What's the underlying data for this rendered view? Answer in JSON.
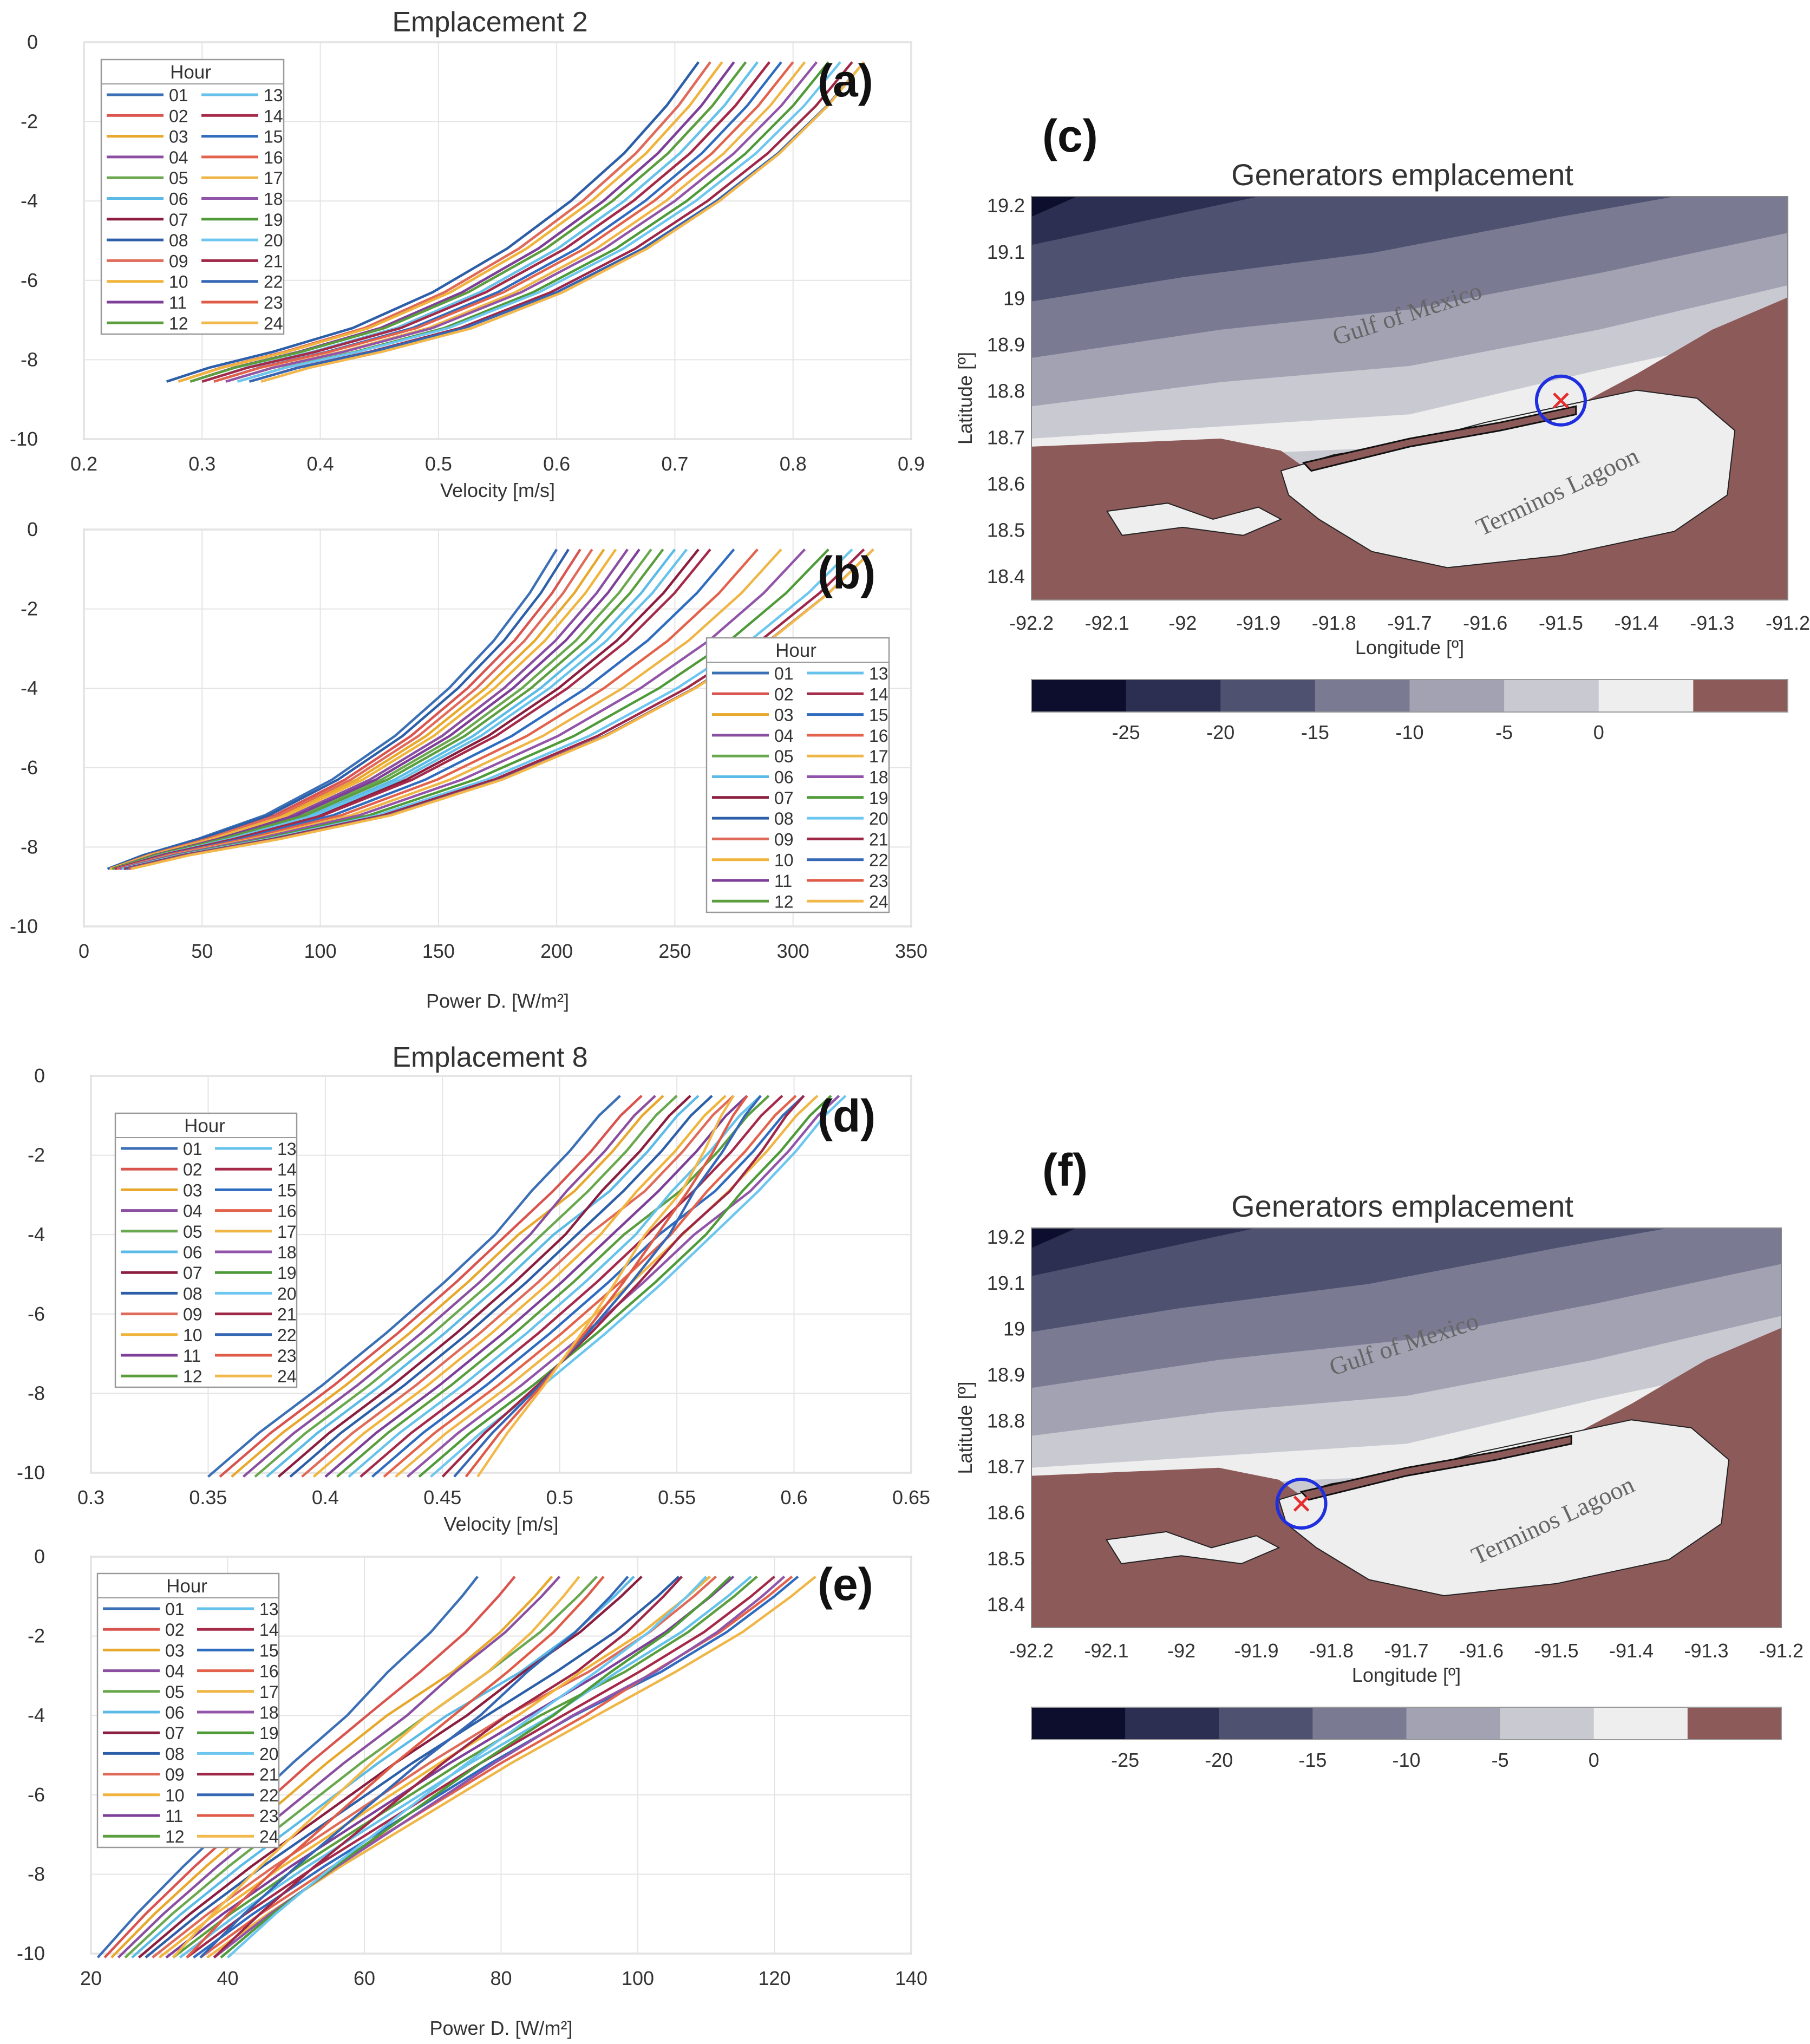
{
  "chart_data": [
    {
      "id": "a",
      "panel_letter": "(a)",
      "type": "line",
      "title": "Emplacement 2",
      "xlabel": "Velocity [m/s]",
      "ylabel": "",
      "xlim": [
        0.2,
        0.9
      ],
      "ylim": [
        -10,
        0
      ],
      "xticks": [
        "0.2",
        "0.3",
        "0.4",
        "0.5",
        "0.6",
        "0.7",
        "0.8",
        "0.9"
      ],
      "yticks": [
        "0",
        "-2",
        "-4",
        "-6",
        "-8",
        "-10"
      ],
      "grid": true,
      "legend": {
        "title": "Hour",
        "placement": "top-left",
        "entries": [
          "01",
          "02",
          "03",
          "04",
          "05",
          "06",
          "07",
          "08",
          "09",
          "10",
          "11",
          "12",
          "13",
          "14",
          "15",
          "16",
          "17",
          "18",
          "19",
          "20",
          "21",
          "22",
          "23",
          "24"
        ]
      },
      "depths": [
        -8.55,
        -8.2,
        -7.8,
        -7.2,
        -6.3,
        -5.2,
        -4.0,
        -2.8,
        -1.6,
        -0.5
      ],
      "series_profile": [
        0,
        0.08,
        0.2,
        0.35,
        0.5,
        0.64,
        0.76,
        0.86,
        0.94,
        1
      ],
      "series": [
        {
          "name": "01",
          "bottom": 0.27,
          "top": 0.72
        },
        {
          "name": "02",
          "bottom": 0.28,
          "top": 0.73
        },
        {
          "name": "03",
          "bottom": 0.28,
          "top": 0.74
        },
        {
          "name": "04",
          "bottom": 0.29,
          "top": 0.75
        },
        {
          "name": "05",
          "bottom": 0.29,
          "top": 0.76
        },
        {
          "name": "06",
          "bottom": 0.3,
          "top": 0.77
        },
        {
          "name": "07",
          "bottom": 0.3,
          "top": 0.78
        },
        {
          "name": "08",
          "bottom": 0.27,
          "top": 0.72
        },
        {
          "name": "09",
          "bottom": 0.28,
          "top": 0.73
        },
        {
          "name": "10",
          "bottom": 0.28,
          "top": 0.74
        },
        {
          "name": "11",
          "bottom": 0.29,
          "top": 0.75
        },
        {
          "name": "12",
          "bottom": 0.29,
          "top": 0.76
        },
        {
          "name": "13",
          "bottom": 0.3,
          "top": 0.77
        },
        {
          "name": "14",
          "bottom": 0.3,
          "top": 0.78
        },
        {
          "name": "15",
          "bottom": 0.31,
          "top": 0.79
        },
        {
          "name": "16",
          "bottom": 0.31,
          "top": 0.8
        },
        {
          "name": "17",
          "bottom": 0.32,
          "top": 0.81
        },
        {
          "name": "18",
          "bottom": 0.32,
          "top": 0.82
        },
        {
          "name": "19",
          "bottom": 0.33,
          "top": 0.83
        },
        {
          "name": "20",
          "bottom": 0.33,
          "top": 0.84
        },
        {
          "name": "21",
          "bottom": 0.34,
          "top": 0.85
        },
        {
          "name": "22",
          "bottom": 0.34,
          "top": 0.86
        },
        {
          "name": "23",
          "bottom": 0.35,
          "top": 0.86
        },
        {
          "name": "24",
          "bottom": 0.35,
          "top": 0.86
        }
      ]
    },
    {
      "id": "b",
      "panel_letter": "(b)",
      "type": "line",
      "title": "",
      "xlabel": "Power D.  [W/m²]",
      "ylabel": "",
      "xlim": [
        0,
        350
      ],
      "ylim": [
        -10,
        0
      ],
      "xticks": [
        "0",
        "50",
        "100",
        "150",
        "200",
        "250",
        "300",
        "350"
      ],
      "yticks": [
        "0",
        "-2",
        "-4",
        "-6",
        "-8",
        "-10"
      ],
      "grid": true,
      "legend": {
        "title": "Hour",
        "placement": "right",
        "entries": [
          "01",
          "02",
          "03",
          "04",
          "05",
          "06",
          "07",
          "08",
          "09",
          "10",
          "11",
          "12",
          "13",
          "14",
          "15",
          "16",
          "17",
          "18",
          "19",
          "20",
          "21",
          "22",
          "23",
          "24"
        ]
      },
      "depths": [
        -8.55,
        -8.2,
        -7.8,
        -7.2,
        -6.3,
        -5.2,
        -4.0,
        -2.8,
        -1.6,
        -0.5
      ],
      "series_profile": [
        0,
        0.08,
        0.2,
        0.35,
        0.5,
        0.64,
        0.76,
        0.86,
        0.94,
        1
      ],
      "series": [
        {
          "name": "01",
          "bottom": 10,
          "top": 200
        },
        {
          "name": "02",
          "bottom": 11,
          "top": 210
        },
        {
          "name": "03",
          "bottom": 11,
          "top": 220
        },
        {
          "name": "04",
          "bottom": 12,
          "top": 230
        },
        {
          "name": "05",
          "bottom": 12,
          "top": 240
        },
        {
          "name": "06",
          "bottom": 13,
          "top": 250
        },
        {
          "name": "07",
          "bottom": 13,
          "top": 260
        },
        {
          "name": "08",
          "bottom": 10,
          "top": 205
        },
        {
          "name": "09",
          "bottom": 11,
          "top": 215
        },
        {
          "name": "10",
          "bottom": 11,
          "top": 225
        },
        {
          "name": "11",
          "bottom": 12,
          "top": 235
        },
        {
          "name": "12",
          "bottom": 12,
          "top": 245
        },
        {
          "name": "13",
          "bottom": 13,
          "top": 255
        },
        {
          "name": "14",
          "bottom": 13,
          "top": 265
        },
        {
          "name": "15",
          "bottom": 14,
          "top": 275
        },
        {
          "name": "16",
          "bottom": 14,
          "top": 285
        },
        {
          "name": "17",
          "bottom": 15,
          "top": 295
        },
        {
          "name": "18",
          "bottom": 15,
          "top": 305
        },
        {
          "name": "19",
          "bottom": 16,
          "top": 315
        },
        {
          "name": "20",
          "bottom": 16,
          "top": 325
        },
        {
          "name": "21",
          "bottom": 17,
          "top": 330
        },
        {
          "name": "22",
          "bottom": 18,
          "top": 334
        },
        {
          "name": "23",
          "bottom": 19,
          "top": 334
        },
        {
          "name": "24",
          "bottom": 20,
          "top": 334
        }
      ]
    },
    {
      "id": "d",
      "panel_letter": "(d)",
      "type": "line",
      "title": "Emplacement 8",
      "xlabel": "Velocity [m/s]",
      "ylabel": "",
      "xlim": [
        0.3,
        0.65
      ],
      "ylim": [
        -10,
        0
      ],
      "xticks": [
        "0.3",
        "0.35",
        "0.4",
        "0.45",
        "0.5",
        "0.55",
        "0.6",
        "0.65"
      ],
      "yticks": [
        "0",
        "-2",
        "-4",
        "-6",
        "-8",
        "-10"
      ],
      "grid": true,
      "legend": {
        "title": "Hour",
        "placement": "top-left",
        "entries": [
          "01",
          "02",
          "03",
          "04",
          "05",
          "06",
          "07",
          "08",
          "09",
          "10",
          "11",
          "12",
          "13",
          "14",
          "15",
          "16",
          "17",
          "18",
          "19",
          "20",
          "21",
          "22",
          "23",
          "24"
        ]
      },
      "depths": [
        -10.1,
        -9.0,
        -7.8,
        -6.5,
        -5.2,
        -4.0,
        -2.9,
        -1.9,
        -1.0,
        -0.5
      ],
      "series_profile": [
        0,
        0.12,
        0.27,
        0.42,
        0.56,
        0.68,
        0.79,
        0.88,
        0.95,
        1
      ],
      "series": [
        {
          "name": "01",
          "bottom": 0.35,
          "top": 0.53
        },
        {
          "name": "02",
          "bottom": 0.355,
          "top": 0.535
        },
        {
          "name": "03",
          "bottom": 0.36,
          "top": 0.54
        },
        {
          "name": "04",
          "bottom": 0.365,
          "top": 0.545
        },
        {
          "name": "05",
          "bottom": 0.37,
          "top": 0.55
        },
        {
          "name": "06",
          "bottom": 0.375,
          "top": 0.555
        },
        {
          "name": "07",
          "bottom": 0.38,
          "top": 0.56
        },
        {
          "name": "08",
          "bottom": 0.385,
          "top": 0.565
        },
        {
          "name": "09",
          "bottom": 0.39,
          "top": 0.57
        },
        {
          "name": "10",
          "bottom": 0.395,
          "top": 0.575
        },
        {
          "name": "11",
          "bottom": 0.4,
          "top": 0.58
        },
        {
          "name": "12",
          "bottom": 0.405,
          "top": 0.585
        },
        {
          "name": "13",
          "bottom": 0.41,
          "top": 0.59
        },
        {
          "name": "14",
          "bottom": 0.415,
          "top": 0.595
        },
        {
          "name": "15",
          "bottom": 0.42,
          "top": 0.6
        },
        {
          "name": "16",
          "bottom": 0.425,
          "top": 0.605
        },
        {
          "name": "17",
          "bottom": 0.43,
          "top": 0.61
        },
        {
          "name": "18",
          "bottom": 0.435,
          "top": 0.615
        },
        {
          "name": "19",
          "bottom": 0.44,
          "top": 0.62
        },
        {
          "name": "20",
          "bottom": 0.445,
          "top": 0.622
        },
        {
          "name": "21",
          "bottom": 0.45,
          "top": 0.6
        },
        {
          "name": "22",
          "bottom": 0.455,
          "top": 0.59
        },
        {
          "name": "23",
          "bottom": 0.46,
          "top": 0.58
        },
        {
          "name": "24",
          "bottom": 0.465,
          "top": 0.57
        }
      ]
    },
    {
      "id": "e",
      "panel_letter": "(e)",
      "type": "line",
      "title": "",
      "xlabel": "Power D.  [W/m²]",
      "ylabel": "",
      "xlim": [
        20,
        140
      ],
      "ylim": [
        -10,
        0
      ],
      "xticks": [
        "20",
        "40",
        "60",
        "80",
        "100",
        "120",
        "140"
      ],
      "yticks": [
        "0",
        "-2",
        "-4",
        "-6",
        "-8",
        "-10"
      ],
      "grid": true,
      "legend": {
        "title": "Hour",
        "placement": "top-left",
        "entries": [
          "01",
          "02",
          "03",
          "04",
          "05",
          "06",
          "07",
          "08",
          "09",
          "10",
          "11",
          "12",
          "13",
          "14",
          "15",
          "16",
          "17",
          "18",
          "19",
          "20",
          "21",
          "22",
          "23",
          "24"
        ]
      },
      "depths": [
        -10.1,
        -9.0,
        -7.8,
        -6.5,
        -5.2,
        -4.0,
        -2.9,
        -1.9,
        -1.0,
        -0.5
      ],
      "series_profile": [
        0,
        0.1,
        0.22,
        0.36,
        0.5,
        0.64,
        0.77,
        0.88,
        0.96,
        1
      ],
      "series": [
        {
          "name": "01",
          "bottom": 21,
          "top": 78
        },
        {
          "name": "02",
          "bottom": 22,
          "top": 82
        },
        {
          "name": "03",
          "bottom": 23,
          "top": 86
        },
        {
          "name": "04",
          "bottom": 24,
          "top": 90
        },
        {
          "name": "05",
          "bottom": 25,
          "top": 94
        },
        {
          "name": "06",
          "bottom": 26,
          "top": 98
        },
        {
          "name": "07",
          "bottom": 27,
          "top": 102
        },
        {
          "name": "08",
          "bottom": 28,
          "top": 106
        },
        {
          "name": "09",
          "bottom": 29,
          "top": 110
        },
        {
          "name": "10",
          "bottom": 30,
          "top": 112
        },
        {
          "name": "11",
          "bottom": 31,
          "top": 114
        },
        {
          "name": "12",
          "bottom": 32,
          "top": 116
        },
        {
          "name": "13",
          "bottom": 33,
          "top": 118
        },
        {
          "name": "14",
          "bottom": 34,
          "top": 120
        },
        {
          "name": "15",
          "bottom": 35,
          "top": 122
        },
        {
          "name": "16",
          "bottom": 36,
          "top": 124
        },
        {
          "name": "17",
          "bottom": 37,
          "top": 126
        },
        {
          "name": "18",
          "bottom": 38,
          "top": 120
        },
        {
          "name": "19",
          "bottom": 39,
          "top": 115
        },
        {
          "name": "20",
          "bottom": 40,
          "top": 110
        },
        {
          "name": "21",
          "bottom": 38,
          "top": 105
        },
        {
          "name": "22",
          "bottom": 36,
          "top": 100
        },
        {
          "name": "23",
          "bottom": 34,
          "top": 95
        },
        {
          "name": "24",
          "bottom": 32,
          "top": 90
        }
      ]
    },
    {
      "id": "c",
      "panel_letter": "(c)",
      "type": "heatmap",
      "title": "Generators emplacement",
      "xlabel": "Longitude [º]",
      "ylabel": "Latitude [º]",
      "xlim": [
        -92.2,
        -91.2
      ],
      "ylim": [
        18.35,
        19.22
      ],
      "xticks": [
        "-92.2",
        "-92.1",
        "-92",
        "-91.9",
        "-91.8",
        "-91.7",
        "-91.6",
        "-91.5",
        "-91.4",
        "-91.3",
        "-91.2"
      ],
      "yticks": [
        "19.2",
        "19.1",
        "19",
        "18.9",
        "18.8",
        "18.7",
        "18.6",
        "18.5",
        "18.4"
      ],
      "labels": [
        "Gulf of Mexico",
        "Terminos Lagoon"
      ],
      "marker": {
        "lon": -91.5,
        "lat": 18.78
      },
      "colorbar": {
        "ticks": [
          "-25",
          "-20",
          "-15",
          "-10",
          "-5",
          "0"
        ],
        "colors": [
          "#0d0e2e",
          "#2c2f52",
          "#4f5170",
          "#7a7b93",
          "#a2a2b3",
          "#c9c9d2",
          "#eeeeee",
          "#8d5a5a"
        ]
      }
    },
    {
      "id": "f",
      "panel_letter": "(f)",
      "type": "heatmap",
      "title": "Generators emplacement",
      "xlabel": "Longitude [º]",
      "ylabel": "Latitude [º]",
      "xlim": [
        -92.2,
        -91.2
      ],
      "ylim": [
        18.35,
        19.22
      ],
      "xticks": [
        "-92.2",
        "-92.1",
        "-92",
        "-91.9",
        "-91.8",
        "-91.7",
        "-91.6",
        "-91.5",
        "-91.4",
        "-91.3",
        "-91.2"
      ],
      "yticks": [
        "19.2",
        "19.1",
        "19",
        "18.9",
        "18.8",
        "18.7",
        "18.6",
        "18.5",
        "18.4"
      ],
      "labels": [
        "Gulf of Mexico",
        "Terminos Lagoon"
      ],
      "marker": {
        "lon": -91.84,
        "lat": 18.62
      },
      "colorbar": {
        "ticks": [
          "-25",
          "-20",
          "-15",
          "-10",
          "-5",
          "0"
        ],
        "colors": [
          "#0d0e2e",
          "#2c2f52",
          "#4f5170",
          "#7a7b93",
          "#a2a2b3",
          "#c9c9d2",
          "#eeeeee",
          "#8d5a5a"
        ]
      }
    }
  ],
  "series_colors": [
    "#3b6fb6",
    "#d9534f",
    "#e7a82c",
    "#8a4fa0",
    "#6aa84f",
    "#5bbbe6",
    "#8b1e3f",
    "#2d5fa8",
    "#e06a5a",
    "#f0b43c",
    "#7d3f98",
    "#5a9e3e",
    "#66c2ea",
    "#a52a4a",
    "#2f6cbf",
    "#e3624c",
    "#efb545",
    "#9154a8",
    "#4f9a39",
    "#6cc6ef",
    "#9e2747",
    "#3567b5",
    "#df5b47",
    "#f2b84a"
  ]
}
